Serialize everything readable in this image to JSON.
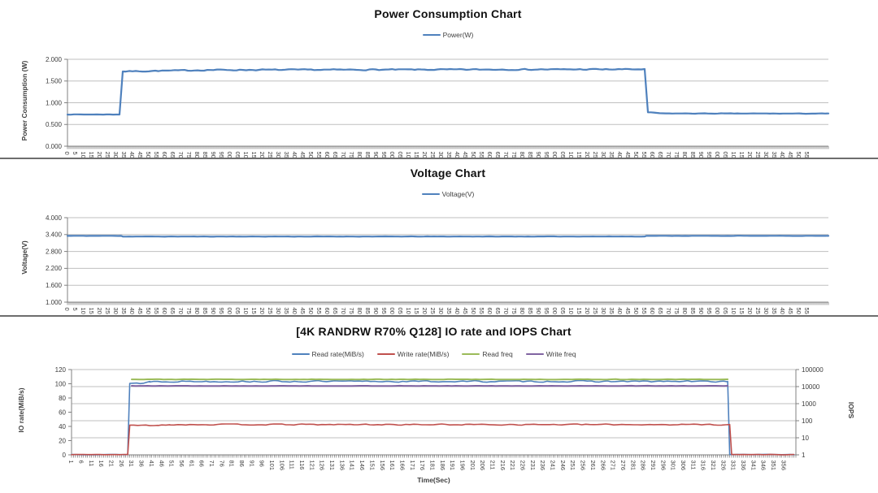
{
  "report": {
    "description": "Three stacked performance charts: power consumption, voltage, and IO rate / IOPS during a 4K random read-write benchmark"
  },
  "chart_data": [
    {
      "type": "line",
      "title": "Power Consumption Chart",
      "xlabel": "",
      "ylabel": "Power Consumption (W)",
      "ylim": [
        0,
        2.0
      ],
      "ytick_labels": [
        "2.000",
        "1.500",
        "1.000",
        "0.500",
        "0.000"
      ],
      "xlim": [
        0,
        468
      ],
      "xtick_start": 0,
      "xtick_step": 5,
      "xtick_labels": [
        "0",
        "5",
        "10",
        "15",
        "20",
        "25",
        "30",
        "35",
        "40",
        "45",
        "50",
        "55",
        "60",
        "65",
        "70",
        "75",
        "80",
        "85",
        "90",
        "95",
        "00",
        "05",
        "10",
        "15",
        "20",
        "25",
        "30",
        "35",
        "40",
        "45",
        "50",
        "55",
        "60",
        "65",
        "70",
        "75",
        "80",
        "85",
        "90",
        "95",
        "00",
        "05",
        "10",
        "15",
        "20",
        "25",
        "30",
        "35",
        "40",
        "45",
        "50",
        "55",
        "60",
        "65",
        "70",
        "75",
        "80",
        "85",
        "90",
        "95",
        "00",
        "05",
        "10",
        "15",
        "20",
        "25",
        "30",
        "35",
        "40",
        "45",
        "50",
        "55",
        "60",
        "65",
        "70",
        "75",
        "80",
        "85",
        "90",
        "95",
        "00",
        "05",
        "10",
        "15",
        "20",
        "25",
        "30",
        "35",
        "40",
        "45",
        "50",
        "55"
      ],
      "grid": true,
      "legend_position": "top",
      "series": [
        {
          "name": "Power(W)",
          "color": "#4F81BD",
          "axis": "left",
          "summary": "idle ~0.73 W until t~32, ~1.72-1.78 W under load t~33-355, ~0.75 W after",
          "segments": [
            [
              0,
              32,
              0.73,
              0.73,
              0.004
            ],
            [
              32,
              34,
              0.73,
              1.72,
              0
            ],
            [
              34,
              90,
              1.72,
              1.755,
              0.013
            ],
            [
              90,
              355,
              1.755,
              1.77,
              0.013
            ],
            [
              355,
              357,
              1.77,
              0.78,
              0
            ],
            [
              357,
              366,
              0.78,
              0.755,
              0.005
            ],
            [
              366,
              468,
              0.753,
              0.75,
              0.005
            ]
          ]
        }
      ]
    },
    {
      "type": "line",
      "title": "Voltage Chart",
      "xlabel": "",
      "ylabel": "Voltage(V)",
      "ylim": [
        1.0,
        4.0
      ],
      "ytick_labels": [
        "4.000",
        "3.400",
        "2.800",
        "2.200",
        "1.600",
        "1.000"
      ],
      "xlim": [
        0,
        468
      ],
      "xtick_start": 0,
      "xtick_step": 5,
      "xtick_labels": [
        "0",
        "5",
        "10",
        "15",
        "20",
        "25",
        "30",
        "35",
        "40",
        "45",
        "50",
        "55",
        "60",
        "65",
        "70",
        "75",
        "80",
        "85",
        "90",
        "95",
        "00",
        "05",
        "10",
        "15",
        "20",
        "25",
        "30",
        "35",
        "40",
        "45",
        "50",
        "55",
        "60",
        "65",
        "70",
        "75",
        "80",
        "85",
        "90",
        "95",
        "00",
        "05",
        "10",
        "15",
        "20",
        "25",
        "30",
        "35",
        "40",
        "45",
        "50",
        "55",
        "60",
        "65",
        "70",
        "75",
        "80",
        "85",
        "90",
        "95",
        "00",
        "05",
        "10",
        "15",
        "20",
        "25",
        "30",
        "35",
        "40",
        "45",
        "50",
        "55",
        "60",
        "65",
        "70",
        "75",
        "80",
        "85",
        "90",
        "95",
        "00",
        "05",
        "10",
        "15",
        "20",
        "25",
        "30",
        "35",
        "40",
        "45",
        "50",
        "55"
      ],
      "grid": true,
      "legend_position": "top",
      "series": [
        {
          "name": "Voltage(V)",
          "color": "#4F81BD",
          "axis": "left",
          "summary": "~3.36 V idle, slight dip to ~3.33 V under load t~33-355",
          "segments": [
            [
              0,
              33,
              3.355,
              3.355,
              0.004
            ],
            [
              33,
              34,
              3.355,
              3.33,
              0
            ],
            [
              34,
              355,
              3.33,
              3.332,
              0.005
            ],
            [
              355,
              356,
              3.332,
              3.355,
              0
            ],
            [
              356,
              468,
              3.355,
              3.355,
              0.004
            ]
          ]
        }
      ]
    },
    {
      "type": "line",
      "title": "[4K RANDRW R70% Q128] IO rate and IOPS Chart",
      "xlabel": "Time(Sec)",
      "ylabel": "IO rate(MiB/s)",
      "ylabel_right": "IOPS",
      "ylim": [
        0,
        120
      ],
      "ytick_labels": [
        "120",
        "100",
        "80",
        "60",
        "40",
        "20",
        "0"
      ],
      "ylim_right": {
        "type": "log",
        "min": 1,
        "max": 100000
      },
      "ytick_labels_right": [
        "100000",
        "10000",
        "1000",
        "100",
        "10",
        "1"
      ],
      "xlim": [
        1,
        362
      ],
      "xtick_start": 1,
      "xtick_step": 5,
      "xtick_labels": [
        "1",
        "6",
        "11",
        "16",
        "21",
        "26",
        "31",
        "36",
        "41",
        "46",
        "51",
        "56",
        "61",
        "66",
        "71",
        "76",
        "81",
        "86",
        "91",
        "96",
        "101",
        "106",
        "111",
        "116",
        "121",
        "126",
        "131",
        "136",
        "141",
        "146",
        "151",
        "156",
        "161",
        "166",
        "171",
        "176",
        "181",
        "186",
        "191",
        "196",
        "201",
        "206",
        "211",
        "216",
        "221",
        "226",
        "231",
        "236",
        "241",
        "246",
        "251",
        "256",
        "261",
        "266",
        "271",
        "276",
        "281",
        "286",
        "291",
        "296",
        "301",
        "306",
        "311",
        "316",
        "321",
        "326",
        "331",
        "336",
        "341",
        "346",
        "351",
        "356"
      ],
      "grid": true,
      "legend_position": "top",
      "series": [
        {
          "name": "Read rate(MiB/s)",
          "color": "#4F81BD",
          "axis": "left",
          "summary": "0 until t~29, ~101-104 MiB/s t~30-328, 0 after",
          "segments": [
            [
              1,
              29,
              0.4,
              0.4,
              0.25
            ],
            [
              29,
              30,
              0.4,
              100.5,
              0
            ],
            [
              30,
              37,
              100.8,
              100.8,
              1.0
            ],
            [
              37,
              40,
              100.8,
              103.3,
              0.8
            ],
            [
              40,
              328,
              103.3,
              103.3,
              1.1
            ],
            [
              328,
              329,
              103.3,
              0.4,
              0
            ],
            [
              329,
              361,
              0.4,
              0.4,
              0.25
            ]
          ]
        },
        {
          "name": "Write rate(MiB/s)",
          "color": "#C0504D",
          "axis": "left",
          "summary": "0 until t~29, ~41-43 MiB/s t~30-329, 0 after",
          "segments": [
            [
              1,
              29,
              0.4,
              0.4,
              0.3
            ],
            [
              29,
              30,
              0.4,
              41.2,
              0
            ],
            [
              30,
              44,
              41.3,
              41.5,
              0.7
            ],
            [
              44,
              50,
              41.5,
              42.6,
              0.7
            ],
            [
              50,
              329,
              42.6,
              42.6,
              0.8
            ],
            [
              329,
              330,
              42.6,
              0.4,
              0
            ],
            [
              330,
              361,
              0.4,
              0.4,
              0.3
            ]
          ]
        },
        {
          "name": "Read freq",
          "color": "#9BBB59",
          "axis": "right",
          "summary": "~26500 IOPS during load window t~31-328",
          "segments": [
            [
              31,
              328,
              26500,
              26500,
              0.03
            ]
          ]
        },
        {
          "name": "Write freq",
          "color": "#8064A2",
          "axis": "right",
          "summary": "~11000 IOPS during load window t~31-328",
          "segments": [
            [
              31,
              328,
              11000,
              11000,
              0.02
            ]
          ]
        }
      ]
    }
  ]
}
